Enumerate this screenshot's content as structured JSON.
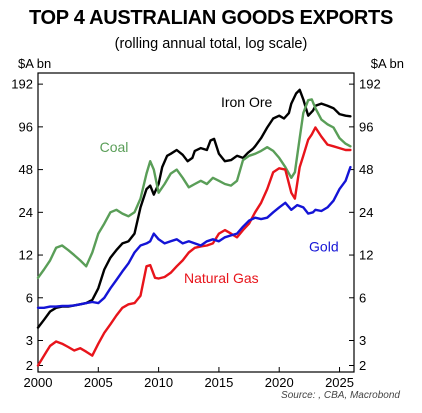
{
  "chart_data": {
    "type": "line",
    "title": "TOP 4 AUSTRALIAN GOODS EXPORTS",
    "subtitle": "(rolling annual total, log scale)",
    "ylabel_left": "$A bn",
    "ylabel_right": "$A bn",
    "yscale": "log",
    "ylim": [
      1.8,
      230
    ],
    "xlim": [
      2000,
      2026.2
    ],
    "yticks": [
      2,
      3,
      6,
      12,
      24,
      48,
      96,
      192
    ],
    "xticks": [
      2000,
      2005,
      2010,
      2015,
      2020,
      2025
    ],
    "grid": false,
    "legend": "inline labels",
    "source": "Source: , CBA, Macrobond",
    "series": [
      {
        "name": "Iron Ore",
        "color": "#000000",
        "points": [
          [
            2000,
            3.7
          ],
          [
            2000.5,
            4.2
          ],
          [
            2001,
            4.8
          ],
          [
            2001.5,
            5.1
          ],
          [
            2002,
            5.2
          ],
          [
            2002.5,
            5.2
          ],
          [
            2003,
            5.3
          ],
          [
            2003.5,
            5.4
          ],
          [
            2004,
            5.5
          ],
          [
            2004.5,
            5.8
          ],
          [
            2005,
            7.0
          ],
          [
            2005.5,
            9.5
          ],
          [
            2006,
            11.5
          ],
          [
            2006.5,
            13
          ],
          [
            2007,
            14.5
          ],
          [
            2007.5,
            15
          ],
          [
            2008,
            17
          ],
          [
            2008.5,
            26
          ],
          [
            2009,
            35
          ],
          [
            2009.3,
            37
          ],
          [
            2009.6,
            32
          ],
          [
            2010,
            38
          ],
          [
            2010.3,
            50
          ],
          [
            2010.7,
            60
          ],
          [
            2011,
            62
          ],
          [
            2011.5,
            66
          ],
          [
            2012,
            61
          ],
          [
            2012.4,
            55
          ],
          [
            2012.8,
            58
          ],
          [
            2013,
            65
          ],
          [
            2013.5,
            68
          ],
          [
            2014,
            66
          ],
          [
            2014.3,
            77
          ],
          [
            2014.6,
            79
          ],
          [
            2015,
            62
          ],
          [
            2015.5,
            55
          ],
          [
            2016,
            56
          ],
          [
            2016.5,
            60
          ],
          [
            2017,
            58
          ],
          [
            2017.4,
            63
          ],
          [
            2017.8,
            67
          ],
          [
            2018,
            70
          ],
          [
            2018.5,
            80
          ],
          [
            2019,
            95
          ],
          [
            2019.5,
            110
          ],
          [
            2020,
            115
          ],
          [
            2020.4,
            110
          ],
          [
            2020.8,
            120
          ],
          [
            2021,
            140
          ],
          [
            2021.4,
            165
          ],
          [
            2021.7,
            175
          ],
          [
            2022,
            150
          ],
          [
            2022.4,
            115
          ],
          [
            2022.8,
            125
          ],
          [
            2023,
            135
          ],
          [
            2023.5,
            140
          ],
          [
            2024,
            135
          ],
          [
            2024.5,
            130
          ],
          [
            2025,
            118
          ],
          [
            2025.5,
            115
          ],
          [
            2025.9,
            114
          ]
        ]
      },
      {
        "name": "Coal",
        "color": "#5a9e58",
        "points": [
          [
            2000,
            8.3
          ],
          [
            2000.5,
            9.5
          ],
          [
            2001,
            11
          ],
          [
            2001.5,
            13.5
          ],
          [
            2002,
            14
          ],
          [
            2002.5,
            13
          ],
          [
            2003,
            12
          ],
          [
            2003.5,
            11
          ],
          [
            2004,
            10
          ],
          [
            2004.5,
            12.5
          ],
          [
            2005,
            17
          ],
          [
            2005.5,
            20
          ],
          [
            2006,
            24
          ],
          [
            2006.5,
            25
          ],
          [
            2007,
            23.5
          ],
          [
            2007.5,
            22.5
          ],
          [
            2008,
            24
          ],
          [
            2008.5,
            30
          ],
          [
            2009,
            45
          ],
          [
            2009.3,
            55
          ],
          [
            2009.6,
            48
          ],
          [
            2010,
            33
          ],
          [
            2010.5,
            38
          ],
          [
            2011,
            45
          ],
          [
            2011.5,
            48
          ],
          [
            2012,
            42
          ],
          [
            2012.5,
            36
          ],
          [
            2013,
            38
          ],
          [
            2013.5,
            40
          ],
          [
            2014,
            38
          ],
          [
            2014.5,
            42
          ],
          [
            2015,
            40
          ],
          [
            2015.5,
            38
          ],
          [
            2016,
            37
          ],
          [
            2016.5,
            40
          ],
          [
            2017,
            56
          ],
          [
            2017.5,
            60
          ],
          [
            2018,
            62
          ],
          [
            2018.5,
            65
          ],
          [
            2019,
            69
          ],
          [
            2019.5,
            65
          ],
          [
            2020,
            58
          ],
          [
            2020.5,
            50
          ],
          [
            2021,
            42
          ],
          [
            2021.3,
            46
          ],
          [
            2021.7,
            80
          ],
          [
            2022,
            120
          ],
          [
            2022.4,
            148
          ],
          [
            2022.7,
            150
          ],
          [
            2023,
            130
          ],
          [
            2023.5,
            108
          ],
          [
            2024,
            100
          ],
          [
            2024.5,
            95
          ],
          [
            2025,
            80
          ],
          [
            2025.5,
            73
          ],
          [
            2025.9,
            70
          ]
        ]
      },
      {
        "name": "Natural Gas",
        "color": "#e8141b",
        "points": [
          [
            2000,
            2.0
          ],
          [
            2000.3,
            2.2
          ],
          [
            2000.7,
            2.5
          ],
          [
            2001,
            2.75
          ],
          [
            2001.5,
            2.95
          ],
          [
            2002,
            2.85
          ],
          [
            2002.5,
            2.7
          ],
          [
            2003,
            2.55
          ],
          [
            2003.5,
            2.65
          ],
          [
            2004,
            2.5
          ],
          [
            2004.5,
            2.35
          ],
          [
            2005,
            2.85
          ],
          [
            2005.5,
            3.4
          ],
          [
            2006,
            3.9
          ],
          [
            2006.5,
            4.5
          ],
          [
            2007,
            5.1
          ],
          [
            2007.5,
            5.4
          ],
          [
            2008,
            5.5
          ],
          [
            2008.5,
            6.2
          ],
          [
            2009,
            10
          ],
          [
            2009.3,
            10.2
          ],
          [
            2009.7,
            8.3
          ],
          [
            2010,
            8.2
          ],
          [
            2010.5,
            8.4
          ],
          [
            2011,
            9
          ],
          [
            2011.5,
            10
          ],
          [
            2012,
            11
          ],
          [
            2012.5,
            12.5
          ],
          [
            2013,
            13.5
          ],
          [
            2013.5,
            13.8
          ],
          [
            2014,
            14
          ],
          [
            2014.5,
            14.5
          ],
          [
            2015,
            17
          ],
          [
            2015.5,
            18
          ],
          [
            2016,
            17
          ],
          [
            2016.5,
            16
          ],
          [
            2017,
            18
          ],
          [
            2017.5,
            20
          ],
          [
            2018,
            24
          ],
          [
            2018.5,
            28
          ],
          [
            2019,
            35
          ],
          [
            2019.5,
            46
          ],
          [
            2020,
            49
          ],
          [
            2020.5,
            48
          ],
          [
            2021,
            33
          ],
          [
            2021.3,
            30
          ],
          [
            2021.7,
            50
          ],
          [
            2022,
            60
          ],
          [
            2022.4,
            78
          ],
          [
            2022.7,
            85
          ],
          [
            2023,
            95
          ],
          [
            2023.5,
            82
          ],
          [
            2024,
            72
          ],
          [
            2024.5,
            70
          ],
          [
            2025,
            68
          ],
          [
            2025.5,
            66
          ],
          [
            2025.9,
            66
          ]
        ]
      },
      {
        "name": "Gold",
        "color": "#1414d6",
        "points": [
          [
            2000,
            5.1
          ],
          [
            2000.5,
            5.1
          ],
          [
            2001,
            5.2
          ],
          [
            2001.5,
            5.2
          ],
          [
            2002,
            5.25
          ],
          [
            2002.5,
            5.25
          ],
          [
            2003,
            5.3
          ],
          [
            2003.5,
            5.4
          ],
          [
            2004,
            5.5
          ],
          [
            2004.5,
            5.6
          ],
          [
            2005,
            5.5
          ],
          [
            2005.5,
            6
          ],
          [
            2006,
            7
          ],
          [
            2006.5,
            8
          ],
          [
            2007,
            9.2
          ],
          [
            2007.5,
            10.5
          ],
          [
            2008,
            12.5
          ],
          [
            2008.5,
            14
          ],
          [
            2009,
            14.5
          ],
          [
            2009.3,
            15
          ],
          [
            2009.6,
            17
          ],
          [
            2010,
            15.5
          ],
          [
            2010.5,
            14.5
          ],
          [
            2011,
            15
          ],
          [
            2011.5,
            15.5
          ],
          [
            2012,
            14.5
          ],
          [
            2012.5,
            15
          ],
          [
            2013,
            14.5
          ],
          [
            2013.5,
            14
          ],
          [
            2014,
            15
          ],
          [
            2014.5,
            15.5
          ],
          [
            2015,
            15
          ],
          [
            2015.5,
            16
          ],
          [
            2016,
            16.5
          ],
          [
            2016.5,
            17
          ],
          [
            2017,
            19
          ],
          [
            2017.5,
            21
          ],
          [
            2018,
            22
          ],
          [
            2018.5,
            21.5
          ],
          [
            2019,
            22
          ],
          [
            2019.5,
            24
          ],
          [
            2020,
            26
          ],
          [
            2020.5,
            28
          ],
          [
            2021,
            25
          ],
          [
            2021.5,
            27
          ],
          [
            2022,
            26
          ],
          [
            2022.4,
            23.5
          ],
          [
            2022.8,
            24
          ],
          [
            2023,
            25
          ],
          [
            2023.5,
            24.5
          ],
          [
            2024,
            26
          ],
          [
            2024.5,
            29
          ],
          [
            2025,
            35
          ],
          [
            2025.5,
            40
          ],
          [
            2025.9,
            50
          ]
        ]
      }
    ],
    "annotations": [
      {
        "text": "Iron Ore",
        "x": 2017.3,
        "y": 132,
        "color": "#000000"
      },
      {
        "text": "Coal",
        "x": 2006.3,
        "y": 64,
        "color": "#5a9e58"
      },
      {
        "text": "Natural Gas",
        "x": 2015.2,
        "y": 7.6,
        "color": "#e8141b"
      },
      {
        "text": "Gold",
        "x": 2023.7,
        "y": 12.7,
        "color": "#1414d6"
      }
    ]
  }
}
